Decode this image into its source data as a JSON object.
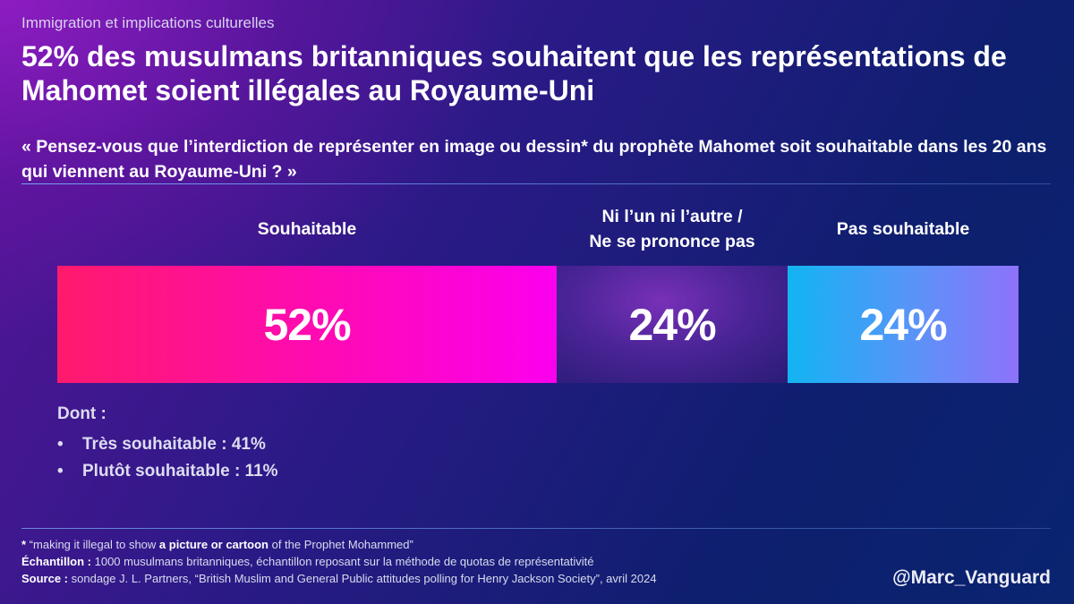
{
  "header": {
    "supertitle": "Immigration et implications culturelles",
    "title": "52% des musulmans britanniques souhaitent que les représentations de Mahomet soient illégales au Royaume-Uni",
    "question": "« Pensez-vous que l’interdiction de représenter en image ou dessin* du prophète Mahomet soit souhaitable dans les 20 ans qui viennent au Royaume-Uni ? »"
  },
  "chart_data": {
    "type": "bar",
    "orientation": "horizontal-stacked",
    "categories": [
      "Souhaitable",
      "Ni l’un ni l’autre /\nNe se prononce pas",
      "Pas souhaitable"
    ],
    "values": [
      52,
      24,
      24
    ],
    "value_labels": [
      "52%",
      "24%",
      "24%"
    ],
    "unit": "%",
    "colors": [
      "#ff1a6c",
      "#4a2496",
      "#12b4f2"
    ]
  },
  "breakdown": {
    "heading": "Dont :",
    "items": [
      "Très souhaitable : 41%",
      "Plutôt souhaitable : 11%"
    ]
  },
  "footnotes": {
    "note_star": "*",
    "note_pre": " “making it illegal to show ",
    "note_bold": "a picture or cartoon",
    "note_post": " of the Prophet Mohammed”",
    "sample_label": "Échantillon :",
    "sample_text": " 1000 musulmans britanniques, échantillon reposant sur la méthode de quotas de représentativité",
    "source_label": "Source :",
    "source_text": " sondage J. L. Partners, “British Muslim and General Public attitudes polling for Henry Jackson Society”, avril 2024"
  },
  "handle": "@Marc_Vanguard"
}
